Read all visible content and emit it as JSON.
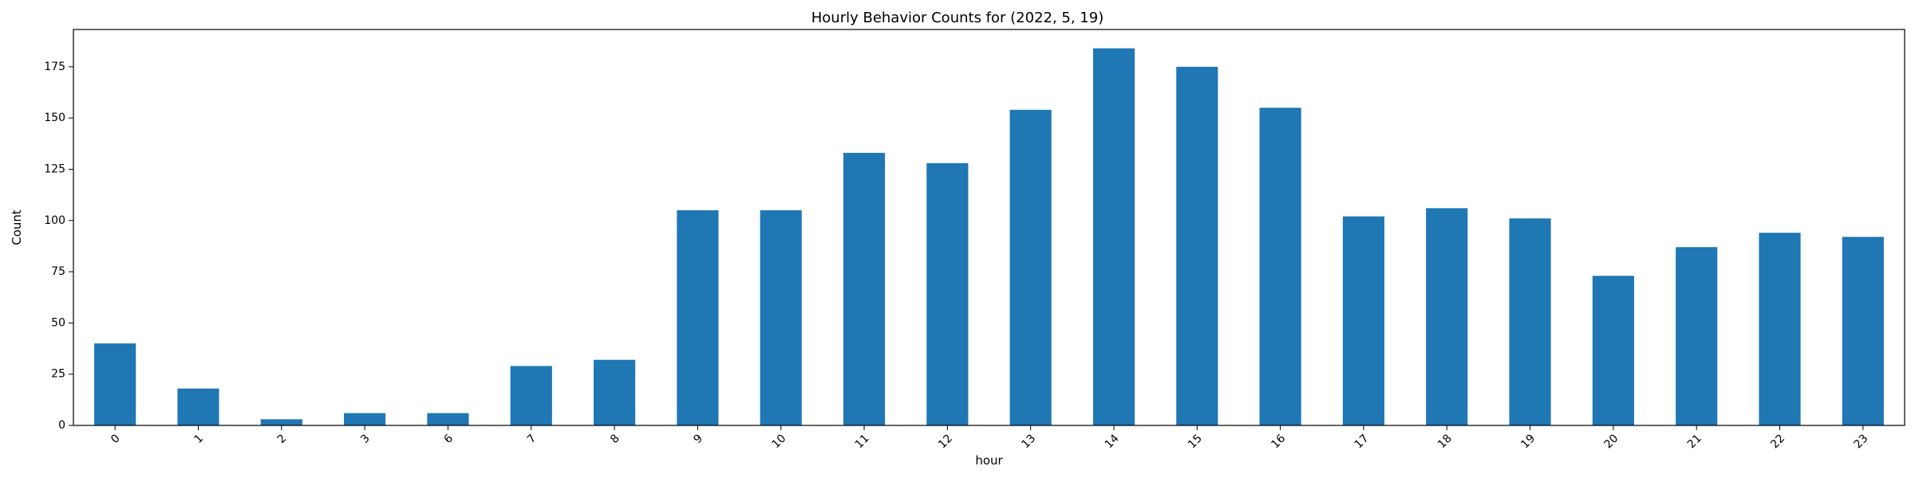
{
  "chart_data": {
    "type": "bar",
    "title": "Hourly Behavior Counts for (2022, 5, 19)",
    "xlabel": "hour",
    "ylabel": "Count",
    "categories": [
      "0",
      "1",
      "2",
      "3",
      "6",
      "7",
      "8",
      "9",
      "10",
      "11",
      "12",
      "13",
      "14",
      "15",
      "16",
      "17",
      "18",
      "19",
      "20",
      "21",
      "22",
      "23"
    ],
    "values": [
      40,
      18,
      3,
      6,
      6,
      29,
      32,
      105,
      105,
      133,
      128,
      154,
      184,
      175,
      155,
      102,
      106,
      101,
      73,
      87,
      94,
      92
    ],
    "ylim": [
      0,
      193.2
    ],
    "yticks": [
      0,
      25,
      50,
      75,
      100,
      125,
      150,
      175
    ],
    "bar_color": "#1f77b4",
    "x_tick_rotation": "45 degrees",
    "grid": false,
    "legend": "none"
  }
}
